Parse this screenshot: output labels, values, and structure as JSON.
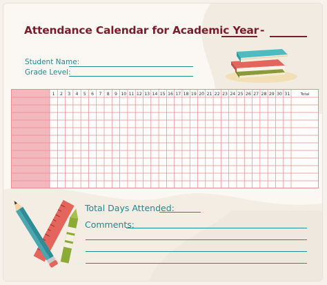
{
  "title": {
    "text": "Attendance Calendar for Academic Year",
    "separator": "-"
  },
  "fields": {
    "student_name_label": "Student Name:",
    "grade_level_label": "Grade Level:"
  },
  "calendar": {
    "days": [
      "1",
      "2",
      "3",
      "4",
      "5",
      "6",
      "7",
      "8",
      "9",
      "10",
      "11",
      "12",
      "13",
      "14",
      "15",
      "16",
      "17",
      "18",
      "19",
      "20",
      "21",
      "22",
      "23",
      "24",
      "25",
      "26",
      "27",
      "28",
      "29",
      "30",
      "31"
    ],
    "total_label": "Total",
    "body_rows": 12
  },
  "summary": {
    "total_days_label": "Total Days Attended:",
    "comments_label": "Comments:"
  },
  "icons": {
    "books": "stack-of-books-icon",
    "stationery": "pencil-ruler-crayon-icon"
  },
  "colors": {
    "title": "#7a1d2b",
    "accent": "#1e8a8e",
    "grid_line": "#e58b93",
    "grid_shade": "#f2b8bd",
    "background": "#fbf8f3"
  }
}
